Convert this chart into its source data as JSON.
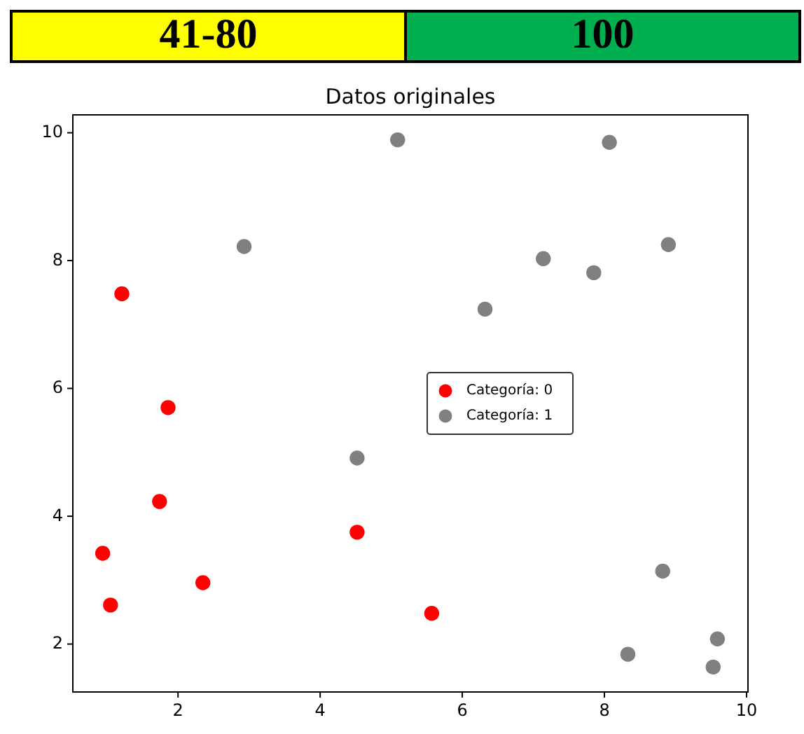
{
  "chart_data": [
    {
      "type": "other",
      "annotations": [
        "41-80",
        "100"
      ],
      "colors": [
        "#ffff00",
        "#00b050"
      ]
    },
    {
      "type": "scatter",
      "title": "Datos originales",
      "xlim": [
        0.52,
        10.02
      ],
      "ylim": [
        1.25,
        10.28
      ],
      "xticks": [
        2,
        4,
        6,
        8,
        10
      ],
      "yticks": [
        2,
        4,
        6,
        8,
        10
      ],
      "grid": false,
      "legend": "center",
      "marker": "circle",
      "series": [
        {
          "name": "Categoría: 0",
          "color": "#ff0000",
          "x": [
            1.21,
            1.86,
            1.74,
            0.94,
            1.05,
            2.35,
            4.52,
            5.57
          ],
          "values": [
            7.48,
            5.7,
            4.23,
            3.42,
            2.61,
            2.96,
            3.75,
            2.48
          ]
        },
        {
          "name": "Categoría: 1",
          "color": "#808080",
          "x": [
            2.93,
            5.09,
            4.52,
            6.32,
            7.14,
            7.85,
            8.07,
            8.9,
            8.82,
            8.33,
            9.59,
            9.53
          ],
          "values": [
            8.22,
            9.89,
            4.91,
            7.24,
            8.03,
            7.81,
            9.85,
            8.25,
            3.14,
            1.84,
            2.08,
            1.64
          ]
        }
      ]
    }
  ]
}
